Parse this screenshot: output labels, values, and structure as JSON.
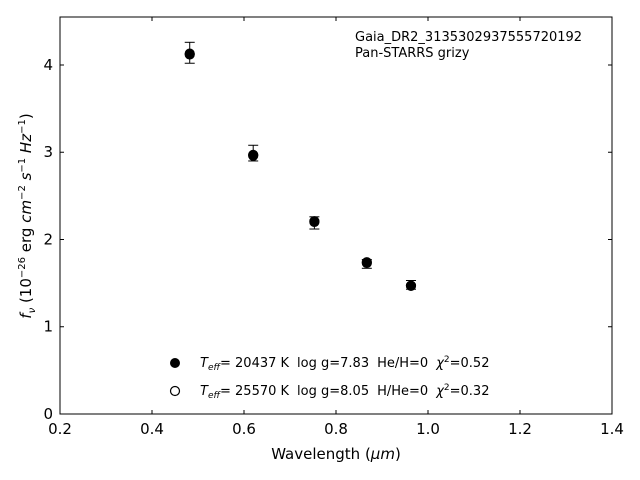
{
  "chart_data": {
    "type": "scatter",
    "xlabel_main": "Wavelength (",
    "xlabel_unit": "μm",
    "xlabel_close": ")",
    "ylabel_f": "f",
    "ylabel_sub": "ν",
    "ylabel_rest1": " (10",
    "ylabel_exp1": "−26",
    "ylabel_rest2": " erg ",
    "ylabel_cm": "cm",
    "ylabel_exp2": "−2",
    "ylabel_s": " s",
    "ylabel_exp3": "−1",
    "ylabel_hz": " Hz",
    "ylabel_exp4": "−1",
    "ylabel_close": ")",
    "xlim": [
      0.2,
      1.4
    ],
    "ylim": [
      0,
      4.55
    ],
    "xticks": [
      "0.2",
      "0.4",
      "0.6",
      "0.8",
      "1.0",
      "1.2",
      "1.4"
    ],
    "yticks": [
      "0",
      "1",
      "2",
      "3",
      "4"
    ],
    "annotation": [
      "Gaia_DR2_3135302937555720192",
      "Pan-STARRS grizy"
    ],
    "observed": {
      "x": [
        0.482,
        0.62,
        0.753,
        0.867,
        0.963
      ],
      "y": [
        4.14,
        2.99,
        2.19,
        1.72,
        1.48
      ],
      "yerr": [
        0.12,
        0.09,
        0.07,
        0.05,
        0.05
      ]
    },
    "series": [
      {
        "marker": "filled",
        "x": [
          0.482,
          0.62,
          0.753,
          0.867,
          0.963
        ],
        "y": [
          4.12,
          2.96,
          2.21,
          1.74,
          1.47
        ]
      },
      {
        "marker": "open",
        "x": [
          0.482,
          0.62,
          0.753,
          0.867,
          0.963
        ],
        "y": [
          4.13,
          2.97,
          2.2,
          1.73,
          1.47
        ]
      }
    ],
    "legend": [
      {
        "teff_sym": "T",
        "teff_sub": "eff",
        "teff_val": "= 20437 K",
        "logg": "log g=7.83",
        "comp": "He/H=0",
        "chi_sym": "χ",
        "chi_exp": "2",
        "chi_val": "=0.52"
      },
      {
        "teff_sym": "T",
        "teff_sub": "eff",
        "teff_val": "= 25570 K",
        "logg": "log g=8.05",
        "comp": "H/He=0",
        "chi_sym": "χ",
        "chi_exp": "2",
        "chi_val": "=0.32"
      }
    ],
    "legend_placement": "lower center",
    "grid": false,
    "colors": {
      "marker": "#000000",
      "background": "#ffffff"
    }
  }
}
